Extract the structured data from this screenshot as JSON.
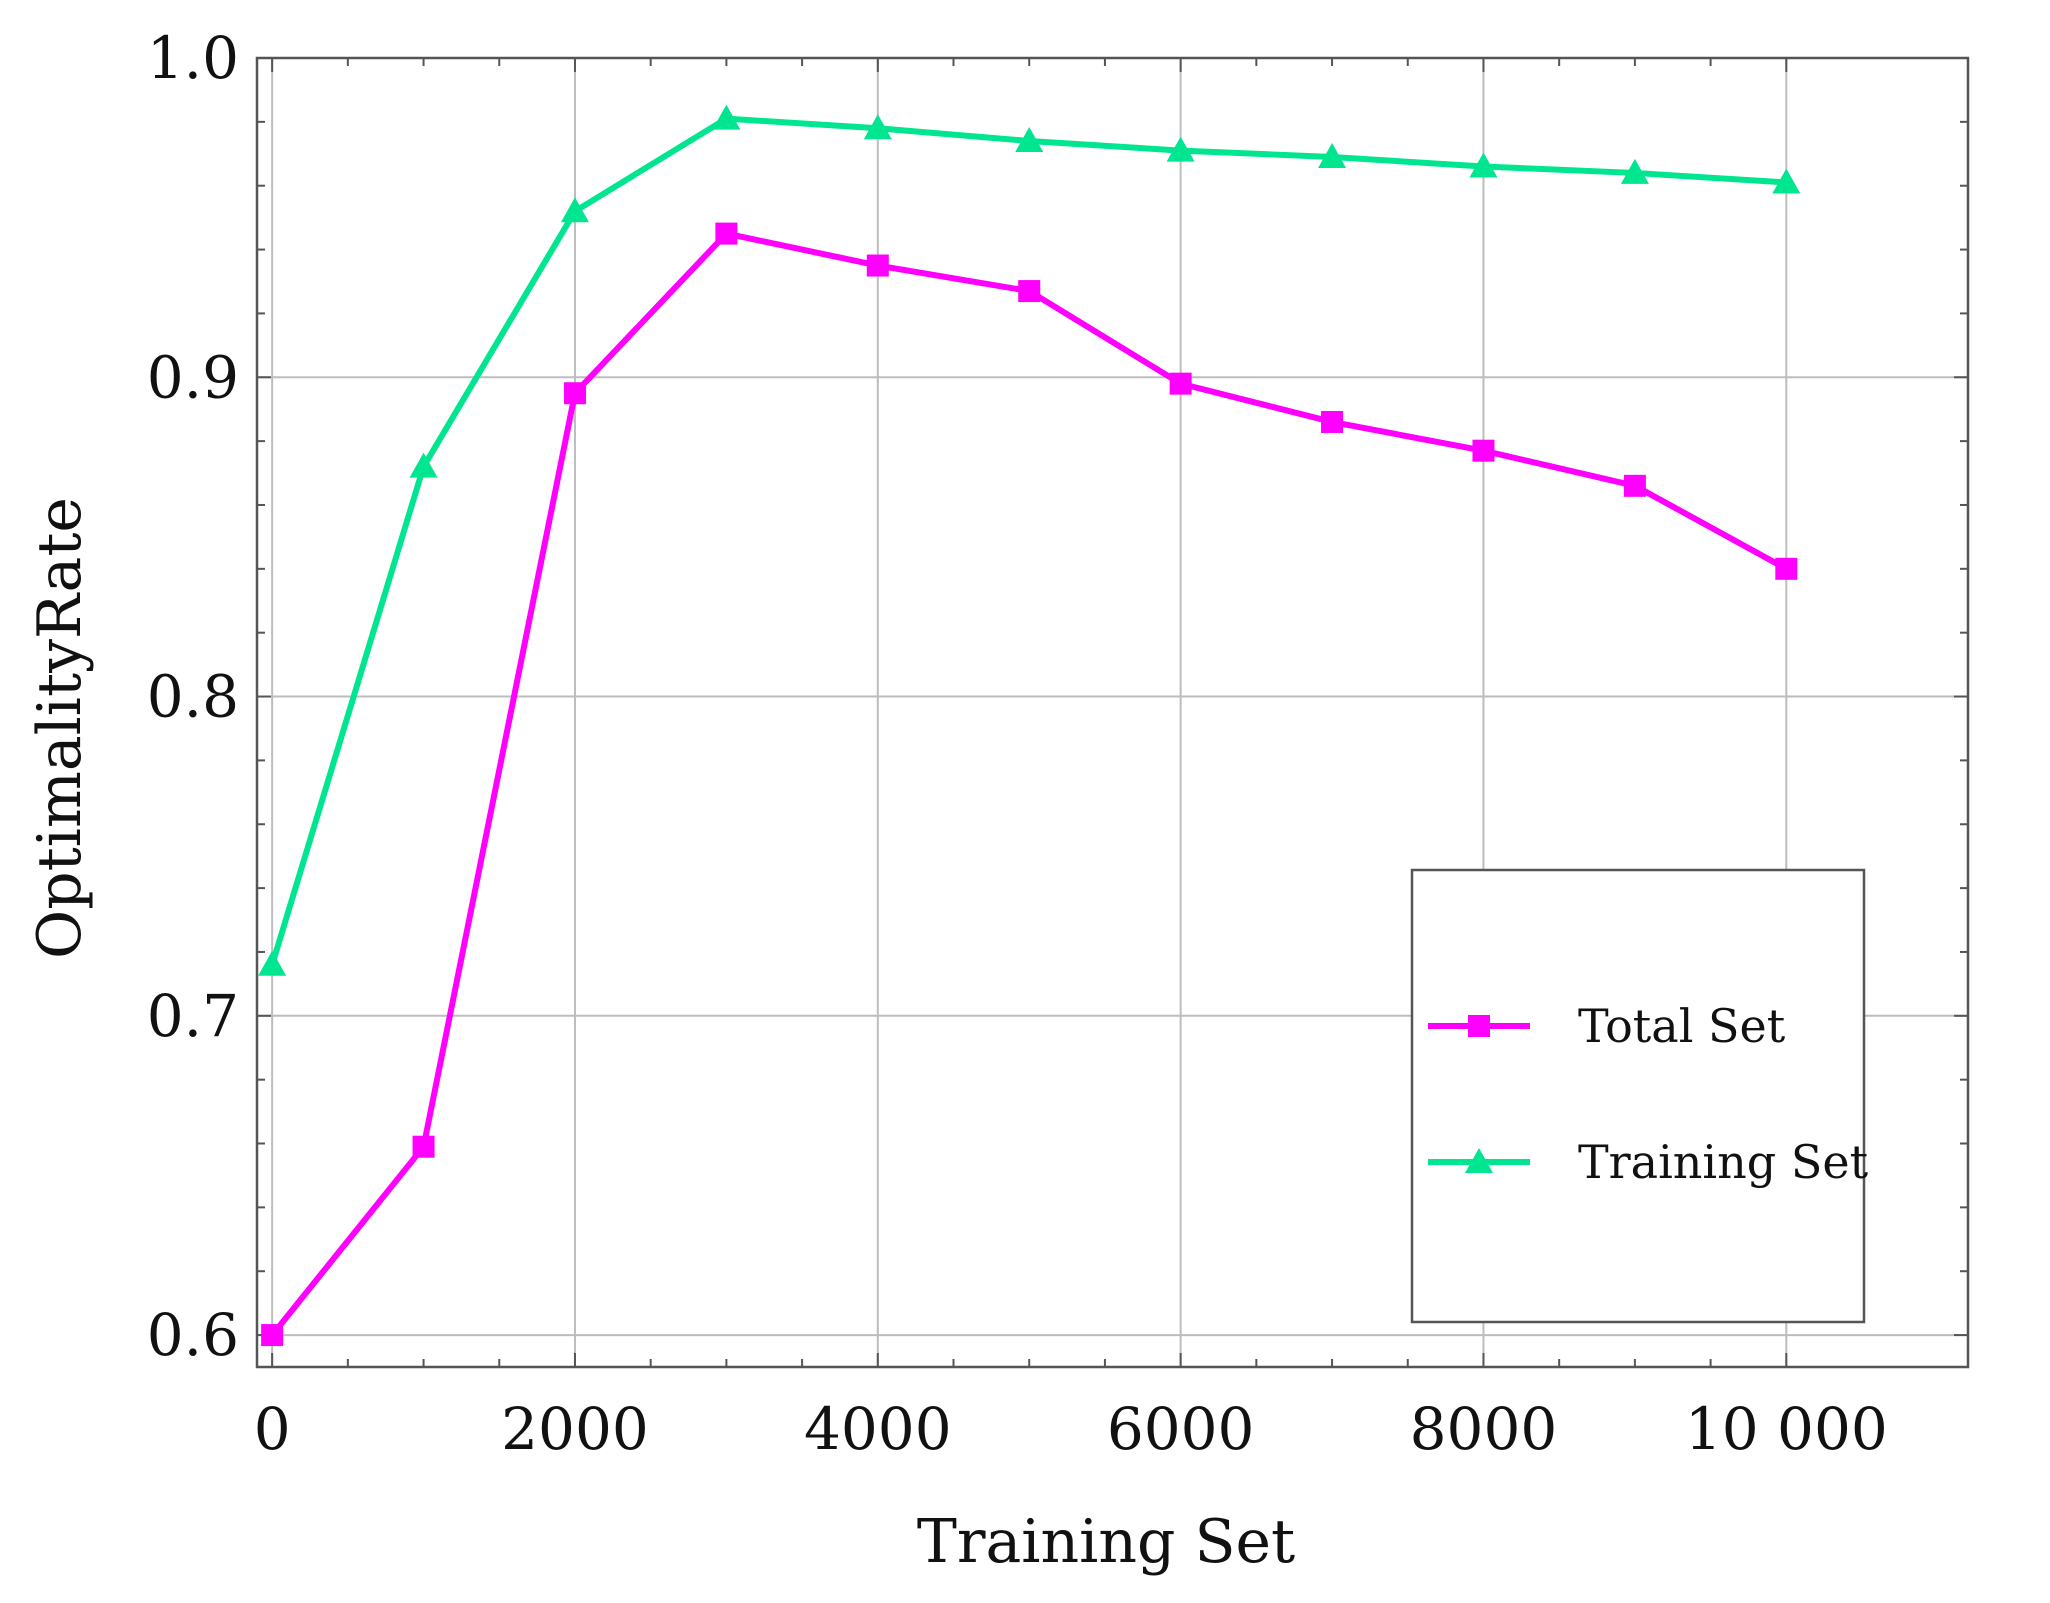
{
  "chart_data": {
    "type": "line",
    "title": "",
    "xlabel": "Training Set",
    "ylabel": "OptimalityRate",
    "xlim": [
      -100,
      11200
    ],
    "ylim": [
      0.59,
      1.0
    ],
    "grid": true,
    "legend_position": "bottom-right",
    "x": [
      0,
      1000,
      2000,
      3000,
      4000,
      5000,
      6000,
      7000,
      8000,
      9000,
      10000
    ],
    "x_ticks": [
      0,
      2000,
      4000,
      6000,
      8000,
      10000
    ],
    "x_tick_labels": [
      "0",
      "2000",
      "4000",
      "6000",
      "8000",
      "10 000"
    ],
    "y_ticks": [
      0.6,
      0.7,
      0.8,
      0.9,
      1.0
    ],
    "y_tick_labels": [
      "0.6",
      "0.7",
      "0.8",
      "0.9",
      "1.0"
    ],
    "series": [
      {
        "name": "Total Set",
        "color": "#ff00ff",
        "marker": "square",
        "values": [
          0.6,
          0.659,
          0.895,
          0.945,
          0.935,
          0.927,
          0.898,
          0.886,
          0.877,
          0.866,
          0.84
        ]
      },
      {
        "name": "Training Set",
        "color": "#00e58f",
        "marker": "triangle",
        "values": [
          0.716,
          0.872,
          0.952,
          0.981,
          0.978,
          0.974,
          0.971,
          0.969,
          0.966,
          0.964,
          0.961
        ]
      }
    ]
  }
}
